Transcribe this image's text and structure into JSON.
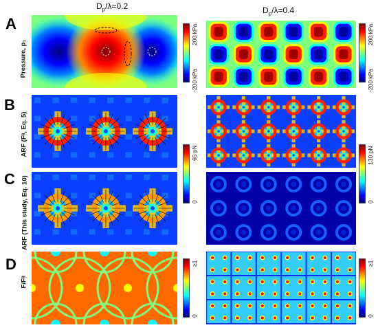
{
  "titles": {
    "left": {
      "prefix": "D",
      "sub": "p",
      "suffix": "/λ=0.2"
    },
    "right": {
      "prefix": "D",
      "sub": "p",
      "suffix": "/λ=0.4"
    }
  },
  "rows": [
    {
      "letter": "A",
      "label": "Pressure, p₁"
    },
    {
      "letter": "B",
      "label": "ARF (Fᵍ, Eq. 5)"
    },
    {
      "letter": "C",
      "label": "ARF (This study, Eq. 10)"
    },
    {
      "letter": "D",
      "label": "F/Fᵍ"
    }
  ],
  "colorbars": {
    "pressure_left": {
      "max": "200 kPa",
      "min": "-200 kPa"
    },
    "pressure_right": {
      "max": "200 kPa",
      "min": "-200 kPa"
    },
    "arf_left": {
      "max": "65 pN",
      "min": "0"
    },
    "arf_right": {
      "max": "130 pN",
      "min": "0"
    },
    "ratio_left": {
      "max": "≥1",
      "min": "0"
    },
    "ratio_right": {
      "max": "≥1",
      "min": "0"
    }
  },
  "colors": {
    "jet": [
      "#00007f",
      "#0000ff",
      "#007fff",
      "#00ffff",
      "#7fff7f",
      "#ffff00",
      "#ff7f00",
      "#ff0000",
      "#7f0000"
    ]
  }
}
